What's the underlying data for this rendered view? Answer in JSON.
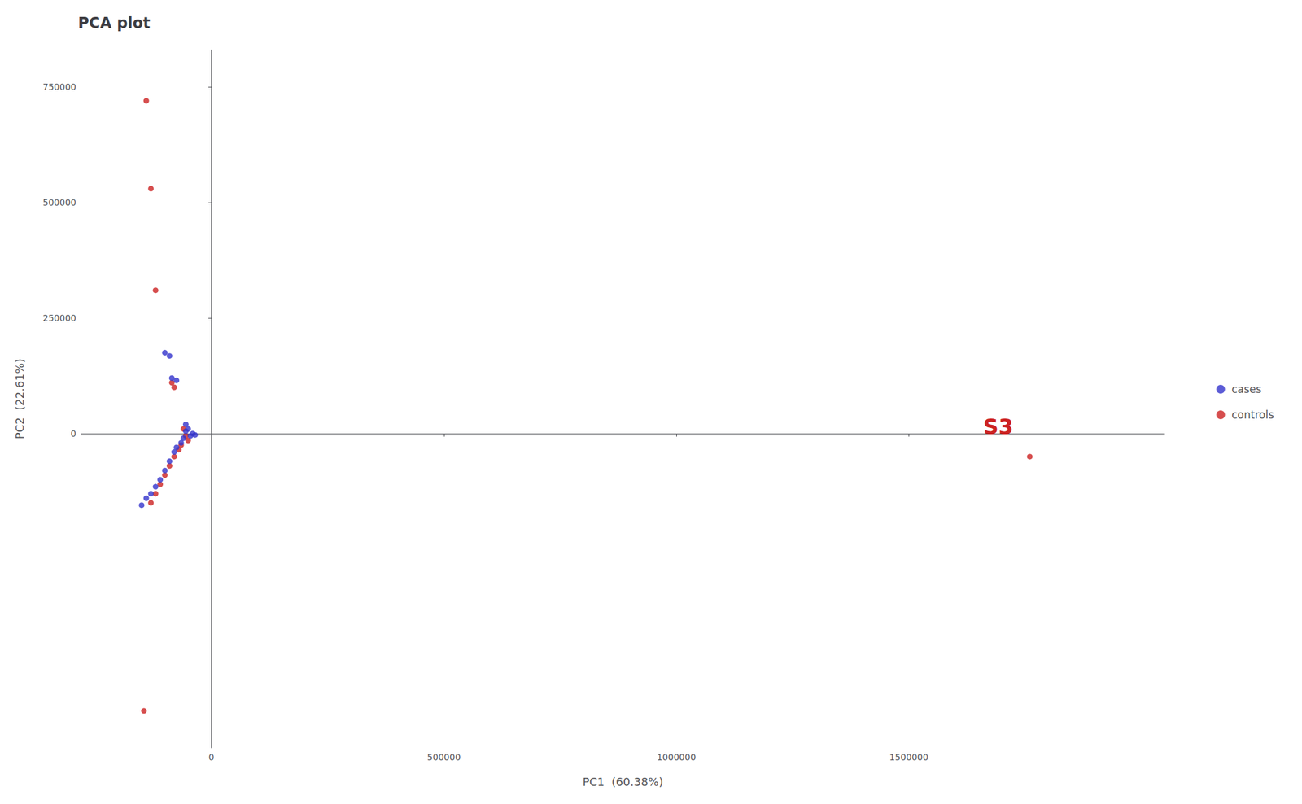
{
  "chart_data": {
    "type": "scatter",
    "title": "PCA plot",
    "x_label": "PC1  (60.38%)",
    "y_label": "PC2  (22.61%)",
    "xlim": [
      -280000,
      2050000
    ],
    "ylim": [
      -680000,
      830000
    ],
    "xticks": [
      0,
      500000,
      1000000,
      1500000
    ],
    "yticks": [
      0,
      250000,
      500000,
      750000
    ],
    "grid": false,
    "legend": "right",
    "series": [
      {
        "name": "cases",
        "color": "#3333cc",
        "values": [
          [
            -100000,
            175000
          ],
          [
            -90000,
            168000
          ],
          [
            -85000,
            120000
          ],
          [
            -75000,
            115000
          ],
          [
            -55000,
            20000
          ],
          [
            -60000,
            -10000
          ],
          [
            -65000,
            -20000
          ],
          [
            -75000,
            -30000
          ],
          [
            -80000,
            -40000
          ],
          [
            -90000,
            -60000
          ],
          [
            -100000,
            -80000
          ],
          [
            -110000,
            -100000
          ],
          [
            -120000,
            -115000
          ],
          [
            -130000,
            -130000
          ],
          [
            -140000,
            -140000
          ],
          [
            -150000,
            -155000
          ],
          [
            -50000,
            10000
          ],
          [
            -55000,
            5000
          ],
          [
            -45000,
            -5000
          ],
          [
            -40000,
            0
          ],
          [
            -35000,
            -3000
          ]
        ]
      },
      {
        "name": "controls",
        "color": "#cc2222",
        "values": [
          [
            -140000,
            720000
          ],
          [
            -130000,
            530000
          ],
          [
            -120000,
            310000
          ],
          [
            -85000,
            110000
          ],
          [
            -80000,
            100000
          ],
          [
            -60000,
            10000
          ],
          [
            -55000,
            -5000
          ],
          [
            -50000,
            -15000
          ],
          [
            -65000,
            -25000
          ],
          [
            -70000,
            -35000
          ],
          [
            -80000,
            -50000
          ],
          [
            -90000,
            -70000
          ],
          [
            -100000,
            -90000
          ],
          [
            -110000,
            -110000
          ],
          [
            -120000,
            -130000
          ],
          [
            -130000,
            -150000
          ],
          [
            -145000,
            -600000
          ],
          [
            1760000,
            -50000
          ]
        ]
      }
    ],
    "annotations": [
      {
        "text": "S3",
        "x": 1660000,
        "y": 15000,
        "color": "#cc2222"
      }
    ]
  }
}
